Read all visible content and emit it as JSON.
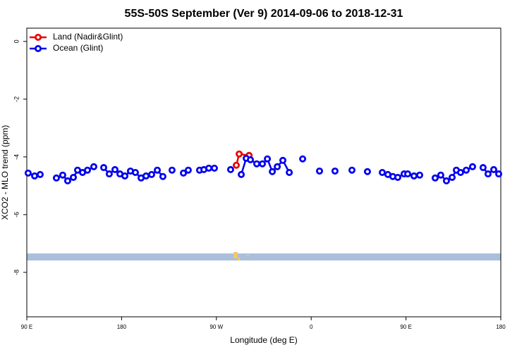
{
  "chart_data": {
    "type": "line",
    "title": "55S-50S September (Ver 9)   2014-09-06 to 2018-12-31",
    "x_label": "Longitude (deg E)",
    "y_label": "XCO2 - MLO trend (ppm)",
    "xlim": [
      90,
      540
    ],
    "ylim": [
      -9.54,
      0.46
    ],
    "xticks": [
      {
        "value": 90,
        "label": "90 E"
      },
      180,
      {
        "value": 270,
        "label": "90 W"
      },
      {
        "value": 360,
        "label": "0"
      },
      {
        "value": 450,
        "label": "90 E"
      },
      {
        "value": 540,
        "label": "180"
      }
    ],
    "yticks": [
      0,
      -2,
      -4,
      -6,
      -8
    ],
    "legend": "top-left",
    "series": [
      {
        "name": "Land (Nadir&Glint)",
        "color": "#ee0000",
        "x": [
          288.9,
          291.6,
          301.0
        ],
        "values": [
          -4.29,
          -3.9,
          -3.95
        ]
      },
      {
        "name": "Ocean (Glint)",
        "color": "#0000ee",
        "x": [
          91.3,
          97.4,
          102.7,
          110,
          118.1,
          124.1,
          128.8,
          134.2,
          138.2,
          142.9,
          147.6,
          153.6,
          158,
          163.0,
          168.3,
          173.7,
          178.4,
          183.1,
          188.4,
          193.1,
          198.5,
          203.2,
          208.5,
          213.9,
          219.2,
          223,
          227.9,
          233,
          238.7,
          243.3,
          248,
          254.0,
          258.1,
          262.8,
          268.1,
          276,
          283.5,
          288,
          293.6,
          298.3,
          302.3,
          308.3,
          313.7,
          318.4,
          323.1,
          327.8,
          333.1,
          339.2,
          345,
          351.9,
          360,
          367.9,
          375,
          382.6,
          390,
          398.7,
          405,
          413.4,
          420,
          427.5,
          432.8,
          437.5,
          442.2,
          448.2,
          451.6,
          457.6,
          463.0,
          470,
          477.7,
          483.0,
          488.4,
          493.8,
          497.8,
          501.8,
          507.2,
          513.2,
          518,
          523.2,
          527.9,
          533.3,
          538.0
        ],
        "values": [
          -4.56,
          -4.66,
          -4.61,
          null,
          -4.73,
          -4.63,
          -4.83,
          -4.71,
          -4.46,
          -4.54,
          -4.46,
          -4.34,
          null,
          -4.37,
          -4.59,
          -4.44,
          -4.59,
          -4.66,
          -4.49,
          -4.54,
          -4.73,
          -4.66,
          -4.61,
          -4.46,
          -4.68,
          null,
          -4.46,
          null,
          -4.56,
          -4.46,
          null,
          -4.46,
          -4.44,
          -4.39,
          -4.39,
          null,
          -4.44,
          null,
          -4.61,
          -4.05,
          -4.1,
          -4.24,
          -4.24,
          -4.07,
          -4.51,
          -4.34,
          -4.12,
          -4.54,
          null,
          -4.07,
          null,
          -4.49,
          null,
          -4.49,
          null,
          -4.46,
          null,
          -4.51,
          null,
          -4.54,
          -4.61,
          -4.68,
          -4.71,
          -4.59,
          -4.59,
          -4.66,
          -4.63,
          null,
          -4.73,
          -4.63,
          -4.83,
          -4.71,
          -4.46,
          -4.54,
          -4.46,
          -4.34,
          null,
          -4.37,
          -4.59,
          -4.44,
          -4.59
        ]
      }
    ]
  }
}
